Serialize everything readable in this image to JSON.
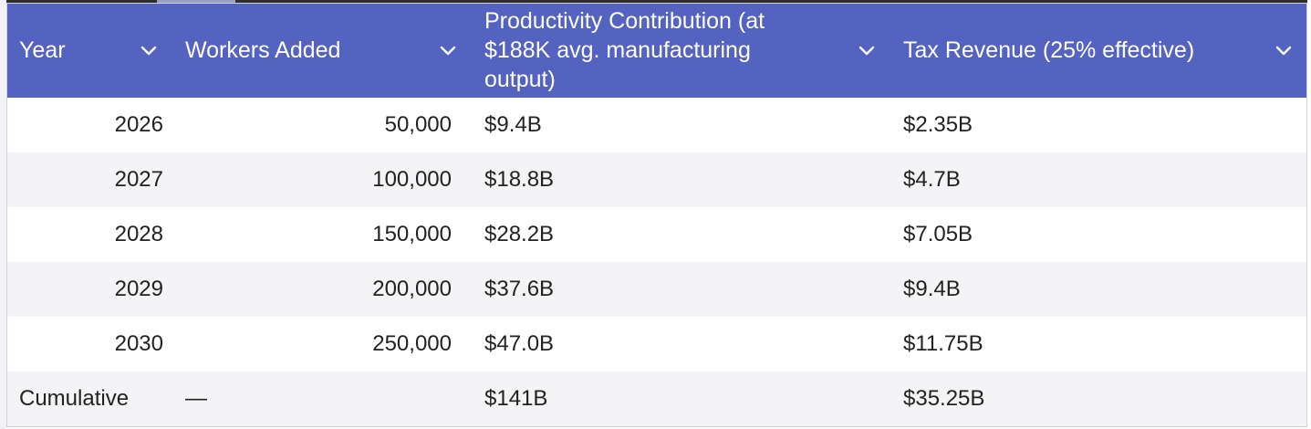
{
  "table": {
    "columns": [
      {
        "label": "Year"
      },
      {
        "label": "Workers Added"
      },
      {
        "label": "Productivity Contribution (at $188K avg. manufacturing output)"
      },
      {
        "label": "Tax Revenue (25% effective)"
      }
    ],
    "rows": [
      {
        "year": "2026",
        "workers": "50,000",
        "productivity": "$9.4B",
        "tax": "$2.35B"
      },
      {
        "year": "2027",
        "workers": "100,000",
        "productivity": "$18.8B",
        "tax": "$4.7B"
      },
      {
        "year": "2028",
        "workers": "150,000",
        "productivity": "$28.2B",
        "tax": "$7.05B"
      },
      {
        "year": "2029",
        "workers": "200,000",
        "productivity": "$37.6B",
        "tax": "$9.4B"
      },
      {
        "year": "2030",
        "workers": "250,000",
        "productivity": "$47.0B",
        "tax": "$11.75B"
      },
      {
        "year": "Cumulative",
        "workers": "—",
        "productivity": "$141B",
        "tax": "$35.25B"
      }
    ],
    "header_icon": "chevron-down-icon",
    "colors": {
      "header_bg": "#5463c0",
      "header_text": "#ffffff",
      "row_alt_bg": "#f4f4f6",
      "cell_text": "#222222"
    }
  }
}
